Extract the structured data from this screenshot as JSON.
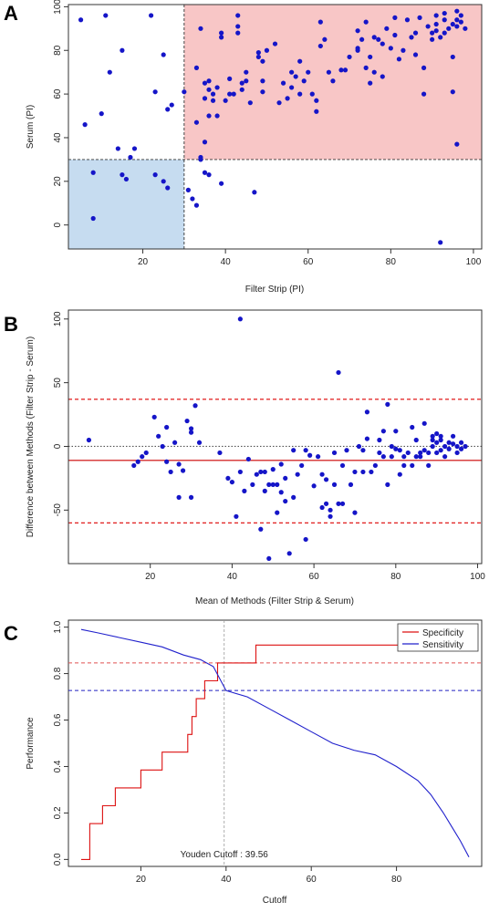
{
  "panels": {
    "a": {
      "label": "A"
    },
    "b": {
      "label": "B"
    },
    "c": {
      "label": "C"
    }
  },
  "chart_data": [
    {
      "type": "scatter",
      "panel": "A",
      "xlabel": "Filter Strip  (PI)",
      "ylabel": "Serum  (PI)",
      "xlim": [
        2,
        102
      ],
      "ylim": [
        -11,
        101
      ],
      "xticks": [
        20,
        40,
        60,
        80,
        100
      ],
      "yticks": [
        0,
        20,
        40,
        60,
        80,
        100
      ],
      "threshold_x": 30,
      "threshold_y": 30,
      "regions": [
        {
          "name": "both-positive",
          "x": [
            30,
            102
          ],
          "y": [
            30,
            101
          ],
          "color": "#f8c6c6"
        },
        {
          "name": "both-negative",
          "x": [
            2,
            30
          ],
          "y": [
            -11,
            30
          ],
          "color": "#c6dcf0"
        }
      ],
      "point_color": "#1515c8",
      "points": [
        [
          5,
          94
        ],
        [
          6,
          46
        ],
        [
          8,
          3
        ],
        [
          8,
          24
        ],
        [
          10,
          51
        ],
        [
          11,
          96
        ],
        [
          12,
          70
        ],
        [
          14,
          35
        ],
        [
          15,
          80
        ],
        [
          15,
          23
        ],
        [
          16,
          21
        ],
        [
          17,
          31
        ],
        [
          18,
          35
        ],
        [
          22,
          96
        ],
        [
          23,
          23
        ],
        [
          23,
          61
        ],
        [
          25,
          78
        ],
        [
          25,
          20
        ],
        [
          26,
          17
        ],
        [
          26,
          53
        ],
        [
          27,
          55
        ],
        [
          30,
          61
        ],
        [
          31,
          16
        ],
        [
          32,
          12
        ],
        [
          33,
          9
        ],
        [
          33,
          72
        ],
        [
          33,
          47
        ],
        [
          34,
          31
        ],
        [
          34,
          30
        ],
        [
          34,
          90
        ],
        [
          35,
          65
        ],
        [
          35,
          38
        ],
        [
          35,
          58
        ],
        [
          35,
          24
        ],
        [
          36,
          62
        ],
        [
          36,
          50
        ],
        [
          36,
          66
        ],
        [
          36,
          23
        ],
        [
          37,
          60
        ],
        [
          37,
          57
        ],
        [
          38,
          50
        ],
        [
          38,
          63
        ],
        [
          39,
          86
        ],
        [
          39,
          19
        ],
        [
          39,
          88
        ],
        [
          40,
          57
        ],
        [
          41,
          60
        ],
        [
          41,
          67
        ],
        [
          42,
          60
        ],
        [
          43,
          96
        ],
        [
          43,
          91
        ],
        [
          43,
          88
        ],
        [
          44,
          65
        ],
        [
          44,
          62
        ],
        [
          45,
          70
        ],
        [
          45,
          66
        ],
        [
          46,
          56
        ],
        [
          47,
          15
        ],
        [
          48,
          77
        ],
        [
          48,
          79
        ],
        [
          49,
          75
        ],
        [
          49,
          61
        ],
        [
          49,
          66
        ],
        [
          50,
          80
        ],
        [
          52,
          83
        ],
        [
          53,
          56
        ],
        [
          54,
          65
        ],
        [
          55,
          58
        ],
        [
          56,
          70
        ],
        [
          56,
          63
        ],
        [
          57,
          68
        ],
        [
          58,
          60
        ],
        [
          58,
          75
        ],
        [
          59,
          66
        ],
        [
          60,
          70
        ],
        [
          61,
          60
        ],
        [
          62,
          57
        ],
        [
          62,
          52
        ],
        [
          63,
          82
        ],
        [
          63,
          93
        ],
        [
          64,
          85
        ],
        [
          65,
          70
        ],
        [
          66,
          66
        ],
        [
          68,
          71
        ],
        [
          69,
          71
        ],
        [
          70,
          77
        ],
        [
          72,
          81
        ],
        [
          72,
          89
        ],
        [
          72,
          80
        ],
        [
          73,
          85
        ],
        [
          74,
          93
        ],
        [
          74,
          72
        ],
        [
          75,
          77
        ],
        [
          75,
          65
        ],
        [
          76,
          86
        ],
        [
          76,
          70
        ],
        [
          77,
          85
        ],
        [
          78,
          83
        ],
        [
          78,
          68
        ],
        [
          79,
          90
        ],
        [
          80,
          81
        ],
        [
          81,
          87
        ],
        [
          81,
          95
        ],
        [
          82,
          76
        ],
        [
          83,
          80
        ],
        [
          84,
          94
        ],
        [
          85,
          86
        ],
        [
          86,
          88
        ],
        [
          86,
          78
        ],
        [
          87,
          95
        ],
        [
          88,
          72
        ],
        [
          88,
          60
        ],
        [
          89,
          91
        ],
        [
          90,
          88
        ],
        [
          90,
          85
        ],
        [
          91,
          92
        ],
        [
          91,
          96
        ],
        [
          92,
          86
        ],
        [
          93,
          88
        ],
        [
          93,
          97
        ],
        [
          94,
          90
        ],
        [
          95,
          61
        ],
        [
          95,
          92
        ],
        [
          95,
          77
        ],
        [
          96,
          37
        ],
        [
          96,
          98
        ],
        [
          96,
          91
        ],
        [
          97,
          93
        ],
        [
          97,
          96
        ],
        [
          98,
          90
        ],
        [
          92,
          -8
        ],
        [
          91,
          89
        ],
        [
          93,
          94
        ],
        [
          96,
          94
        ]
      ]
    },
    {
      "type": "scatter",
      "panel": "B",
      "xlabel": "Mean of Methods (Filter Strip & Serum)",
      "ylabel": "Difference between Methods (Filter Strip - Serum)",
      "xlim": [
        0,
        101
      ],
      "ylim": [
        -92,
        107
      ],
      "xticks": [
        20,
        40,
        60,
        80,
        100
      ],
      "yticks": [
        -50,
        0,
        50,
        100
      ],
      "reference_lines": [
        {
          "name": "upper-limit",
          "y": 37,
          "style": "dashed",
          "color": "#dd0000"
        },
        {
          "name": "zero-line",
          "y": 0,
          "style": "dotted",
          "color": "#555555"
        },
        {
          "name": "mean-bias",
          "y": -11,
          "style": "solid",
          "color": "#cc0000"
        },
        {
          "name": "lower-limit",
          "y": -60,
          "style": "dashed",
          "color": "#dd0000"
        }
      ],
      "point_color": "#1515c8",
      "points": [
        [
          5,
          5
        ],
        [
          16,
          -15
        ],
        [
          17,
          -12
        ],
        [
          18,
          -8
        ],
        [
          19,
          -5
        ],
        [
          21,
          23
        ],
        [
          22,
          8
        ],
        [
          23,
          0
        ],
        [
          24,
          15
        ],
        [
          24,
          -12
        ],
        [
          25,
          -20
        ],
        [
          26,
          3
        ],
        [
          27,
          -14
        ],
        [
          27,
          -40
        ],
        [
          28,
          -19
        ],
        [
          29,
          20
        ],
        [
          30,
          14
        ],
        [
          30,
          11
        ],
        [
          30,
          -40
        ],
        [
          31,
          32
        ],
        [
          32,
          3
        ],
        [
          37,
          -5
        ],
        [
          39,
          -25
        ],
        [
          40,
          -28
        ],
        [
          41,
          -55
        ],
        [
          42,
          -20
        ],
        [
          42,
          100
        ],
        [
          43,
          -35
        ],
        [
          44,
          -10
        ],
        [
          45,
          -30
        ],
        [
          46,
          -22
        ],
        [
          47,
          -20
        ],
        [
          47,
          -65
        ],
        [
          48,
          -20
        ],
        [
          48,
          -35
        ],
        [
          49,
          -30
        ],
        [
          49,
          -88
        ],
        [
          50,
          -18
        ],
        [
          50,
          -30
        ],
        [
          51,
          -30
        ],
        [
          51,
          -52
        ],
        [
          52,
          -14
        ],
        [
          52,
          -36
        ],
        [
          53,
          -25
        ],
        [
          53,
          -43
        ],
        [
          54,
          -84
        ],
        [
          55,
          -3
        ],
        [
          55,
          -40
        ],
        [
          56,
          -22
        ],
        [
          57,
          -15
        ],
        [
          58,
          -3
        ],
        [
          58,
          -73
        ],
        [
          59,
          -7
        ],
        [
          60,
          -31
        ],
        [
          61,
          -8
        ],
        [
          62,
          -22
        ],
        [
          62,
          -48
        ],
        [
          63,
          -26
        ],
        [
          63,
          -45
        ],
        [
          64,
          -55
        ],
        [
          64,
          -50
        ],
        [
          65,
          -5
        ],
        [
          65,
          -30
        ],
        [
          66,
          -45
        ],
        [
          66,
          58
        ],
        [
          67,
          -15
        ],
        [
          67,
          -45
        ],
        [
          68,
          -3
        ],
        [
          69,
          -30
        ],
        [
          70,
          -52
        ],
        [
          70,
          -20
        ],
        [
          71,
          0
        ],
        [
          72,
          -3
        ],
        [
          72,
          -20
        ],
        [
          73,
          6
        ],
        [
          73,
          27
        ],
        [
          74,
          -20
        ],
        [
          75,
          -15
        ],
        [
          76,
          5
        ],
        [
          76,
          -5
        ],
        [
          77,
          12
        ],
        [
          77,
          -8
        ],
        [
          78,
          33
        ],
        [
          78,
          -30
        ],
        [
          79,
          -8
        ],
        [
          79,
          0
        ],
        [
          80,
          12
        ],
        [
          80,
          -2
        ],
        [
          81,
          -22
        ],
        [
          81,
          -3
        ],
        [
          82,
          -15
        ],
        [
          82,
          -8
        ],
        [
          83,
          -5
        ],
        [
          84,
          15
        ],
        [
          84,
          -15
        ],
        [
          85,
          -8
        ],
        [
          85,
          5
        ],
        [
          86,
          -5
        ],
        [
          86,
          -8
        ],
        [
          87,
          -3
        ],
        [
          87,
          18
        ],
        [
          88,
          -15
        ],
        [
          88,
          -5
        ],
        [
          89,
          0
        ],
        [
          89,
          5
        ],
        [
          90,
          3
        ],
        [
          90,
          -5
        ],
        [
          90,
          10
        ],
        [
          91,
          -3
        ],
        [
          91,
          5
        ],
        [
          92,
          -8
        ],
        [
          92,
          0
        ],
        [
          93,
          3
        ],
        [
          93,
          -2
        ],
        [
          94,
          8
        ],
        [
          94,
          2
        ],
        [
          95,
          0
        ],
        [
          95,
          -5
        ],
        [
          96,
          3
        ],
        [
          96,
          -2
        ],
        [
          97,
          0
        ],
        [
          89,
          8
        ],
        [
          91,
          8
        ]
      ]
    },
    {
      "type": "line",
      "panel": "C",
      "xlabel": "Cutoff",
      "ylabel": "Performance",
      "xlim": [
        3,
        100
      ],
      "ylim": [
        -0.03,
        1.03
      ],
      "xticks": [
        20,
        40,
        60,
        80
      ],
      "yticks": [
        0.0,
        0.2,
        0.4,
        0.6,
        0.8,
        1.0
      ],
      "ytick_labels": [
        "0.0",
        "0.2",
        "0.4",
        "0.6",
        "0.8",
        "1.0"
      ],
      "legend": {
        "position": "top-right",
        "entries": [
          "Specificity",
          "Sensitivity"
        ]
      },
      "annotation": "Youden Cutoff : 39.56",
      "youden_cutoff": 39.56,
      "reference_lines": [
        {
          "name": "specificity-at-cutoff",
          "y": 0.846,
          "color": "#e05050",
          "style": "dashed"
        },
        {
          "name": "sensitivity-at-cutoff",
          "y": 0.727,
          "color": "#2020c0",
          "style": "dashed"
        }
      ],
      "series": [
        {
          "name": "Specificity",
          "color": "#dd1111",
          "step": true,
          "points": [
            [
              6,
              0.0
            ],
            [
              8,
              0.0
            ],
            [
              8,
              0.154
            ],
            [
              11,
              0.154
            ],
            [
              11,
              0.231
            ],
            [
              14,
              0.231
            ],
            [
              14,
              0.308
            ],
            [
              20,
              0.308
            ],
            [
              20,
              0.385
            ],
            [
              25,
              0.385
            ],
            [
              25,
              0.462
            ],
            [
              31,
              0.462
            ],
            [
              31,
              0.538
            ],
            [
              32,
              0.538
            ],
            [
              32,
              0.615
            ],
            [
              33,
              0.615
            ],
            [
              33,
              0.692
            ],
            [
              35,
              0.692
            ],
            [
              35,
              0.769
            ],
            [
              38,
              0.769
            ],
            [
              38,
              0.846
            ],
            [
              47,
              0.846
            ],
            [
              47,
              0.923
            ],
            [
              97,
              0.923
            ]
          ]
        },
        {
          "name": "Sensitivity",
          "color": "#2020cc",
          "step": false,
          "points": [
            [
              6,
              0.99
            ],
            [
              10,
              0.975
            ],
            [
              15,
              0.955
            ],
            [
              20,
              0.935
            ],
            [
              25,
              0.915
            ],
            [
              30,
              0.88
            ],
            [
              34,
              0.86
            ],
            [
              37,
              0.83
            ],
            [
              40,
              0.727
            ],
            [
              45,
              0.7
            ],
            [
              50,
              0.65
            ],
            [
              55,
              0.6
            ],
            [
              60,
              0.55
            ],
            [
              65,
              0.5
            ],
            [
              70,
              0.47
            ],
            [
              75,
              0.45
            ],
            [
              80,
              0.4
            ],
            [
              85,
              0.34
            ],
            [
              88,
              0.28
            ],
            [
              91,
              0.2
            ],
            [
              93,
              0.14
            ],
            [
              95,
              0.08
            ],
            [
              97,
              0.01
            ]
          ]
        }
      ]
    }
  ]
}
